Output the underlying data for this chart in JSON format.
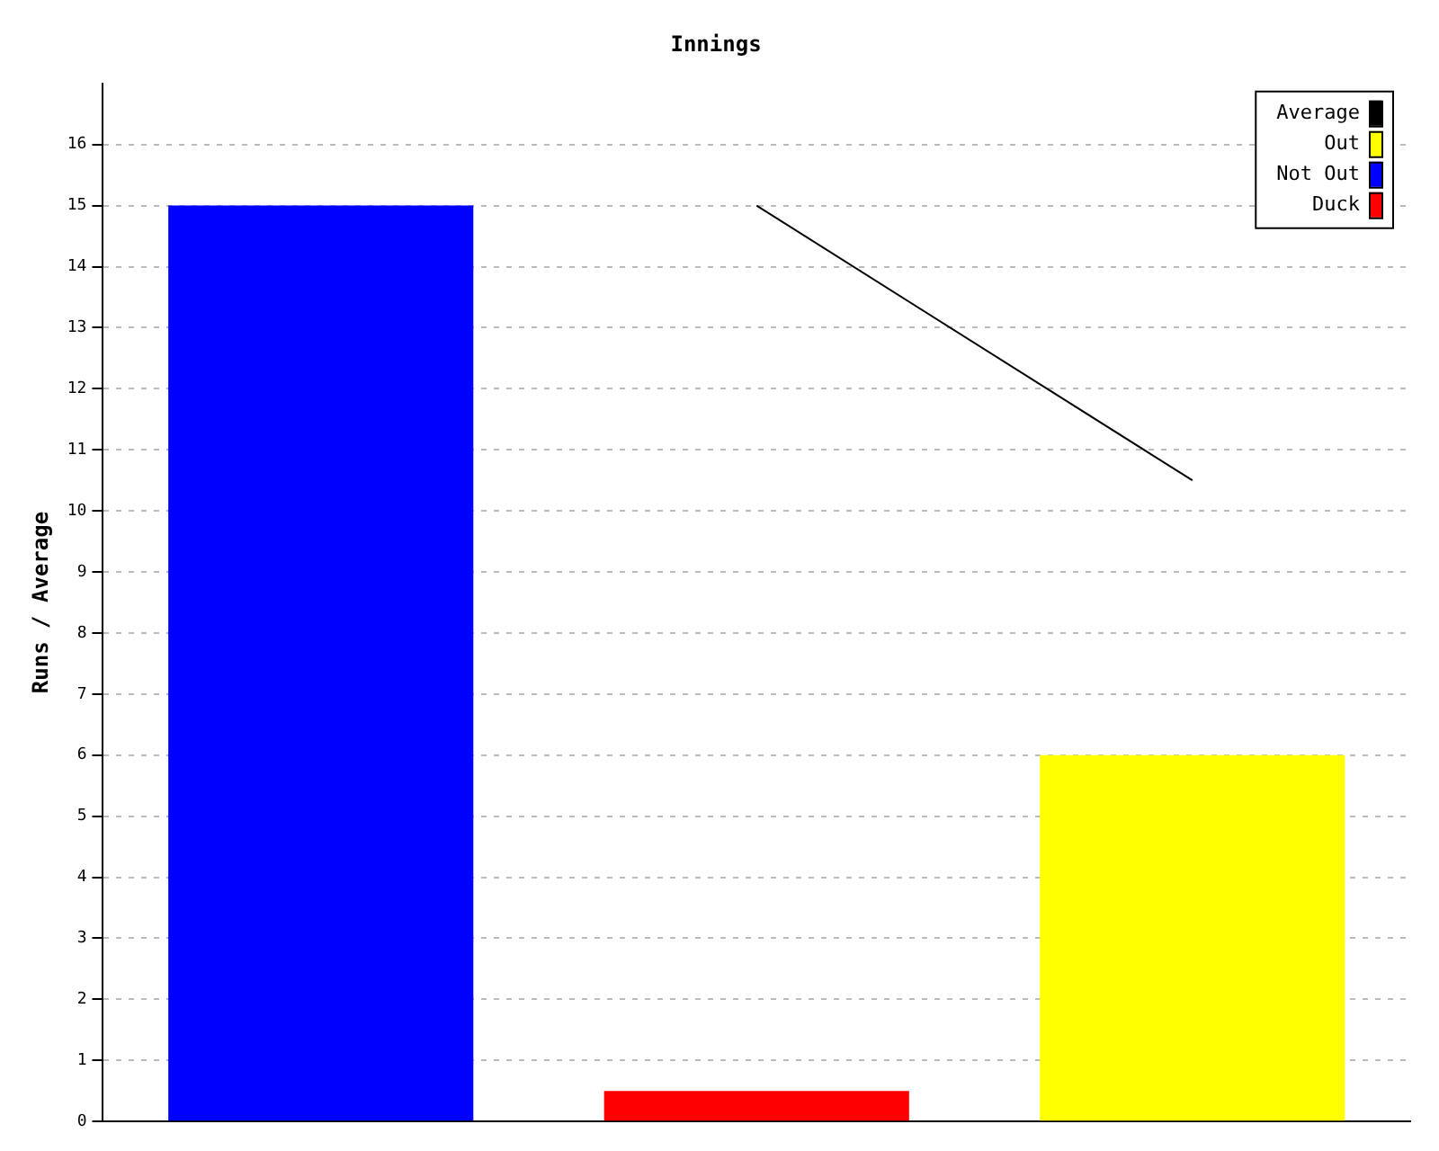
{
  "chart_data": {
    "type": "bar",
    "title": "Innings",
    "ylabel": "Runs / Average",
    "categories": [
      null,
      null,
      null
    ],
    "series": [
      {
        "name": "Average",
        "type": "line",
        "color": "#000000",
        "values": [
          null,
          15,
          10.5
        ]
      },
      {
        "name": "Out",
        "color": "#ffff00",
        "values": [
          null,
          null,
          6
        ]
      },
      {
        "name": "Not Out",
        "color": "#0000ff",
        "values": [
          15,
          null,
          null
        ]
      },
      {
        "name": "Duck",
        "color": "#ff0000",
        "values": [
          null,
          0.5,
          null
        ]
      }
    ],
    "ylim": [
      0,
      17
    ],
    "yticks": [
      0,
      1,
      2,
      3,
      4,
      5,
      6,
      7,
      8,
      9,
      10,
      11,
      12,
      13,
      14,
      15,
      16
    ],
    "grid": "y",
    "legend": "top right"
  }
}
